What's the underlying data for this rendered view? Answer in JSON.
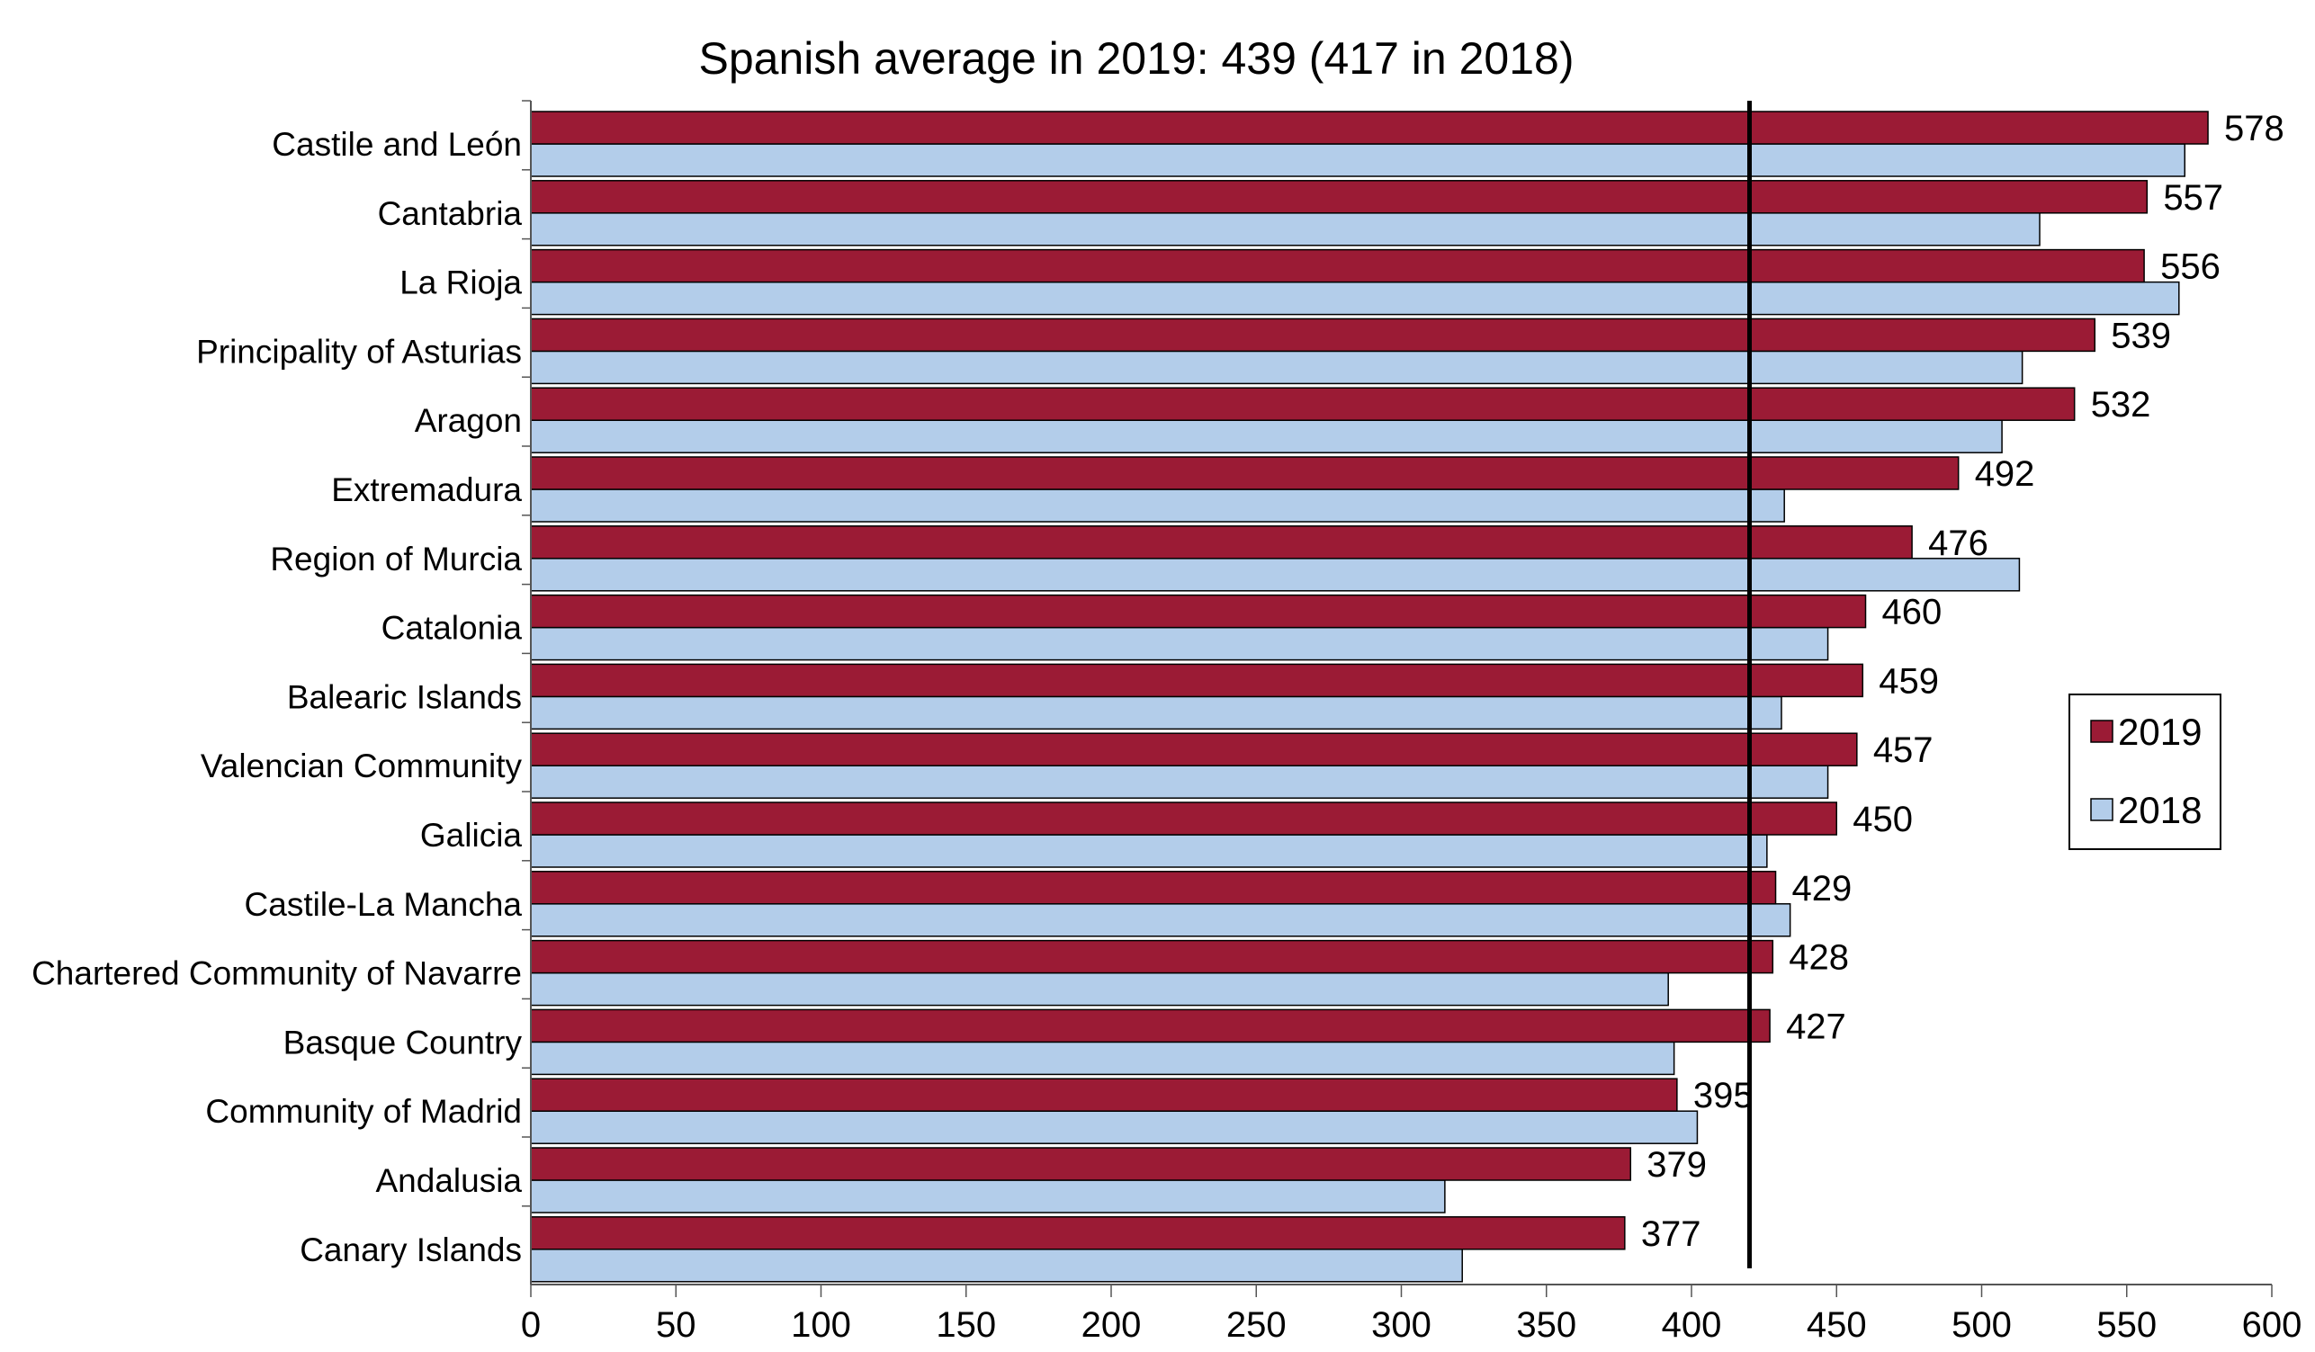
{
  "chart_data": {
    "type": "bar",
    "orientation": "horizontal",
    "title": "Spanish average in 2019: 439 (417 in 2018)",
    "categories": [
      "Castile and León",
      "Cantabria",
      "La Rioja",
      "Principality of Asturias",
      "Aragon",
      "Extremadura",
      "Region of Murcia",
      "Catalonia",
      "Balearic Islands",
      "Valencian Community",
      "Galicia",
      "Castile-La Mancha",
      "Chartered Community of Navarre",
      "Basque Country",
      "Community of Madrid",
      "Andalusia",
      "Canary Islands"
    ],
    "series": [
      {
        "name": "2019",
        "color": "#9B1B35",
        "values": [
          578,
          557,
          556,
          539,
          532,
          492,
          476,
          460,
          459,
          457,
          450,
          429,
          428,
          427,
          395,
          379,
          377
        ],
        "labels": [
          "578",
          "557",
          "556",
          "539",
          "532",
          "492",
          "476",
          "460",
          "459",
          "457",
          "450",
          "429",
          "428",
          "427",
          "395",
          "379",
          "377"
        ]
      },
      {
        "name": "2018",
        "color": "#B3CDEA",
        "values": [
          570,
          520,
          568,
          514,
          507,
          432,
          513,
          447,
          431,
          447,
          426,
          434,
          392,
          394,
          402,
          315,
          321
        ]
      }
    ],
    "reference_line": {
      "value": 420,
      "color": "#000000"
    },
    "xlim": [
      0,
      600
    ],
    "xticks": [
      0,
      50,
      100,
      150,
      200,
      250,
      300,
      350,
      400,
      450,
      500,
      550,
      600
    ],
    "xlabel": "",
    "ylabel": "",
    "grid": false,
    "legend": {
      "position": "right",
      "entries": [
        "2019",
        "2018"
      ]
    }
  }
}
